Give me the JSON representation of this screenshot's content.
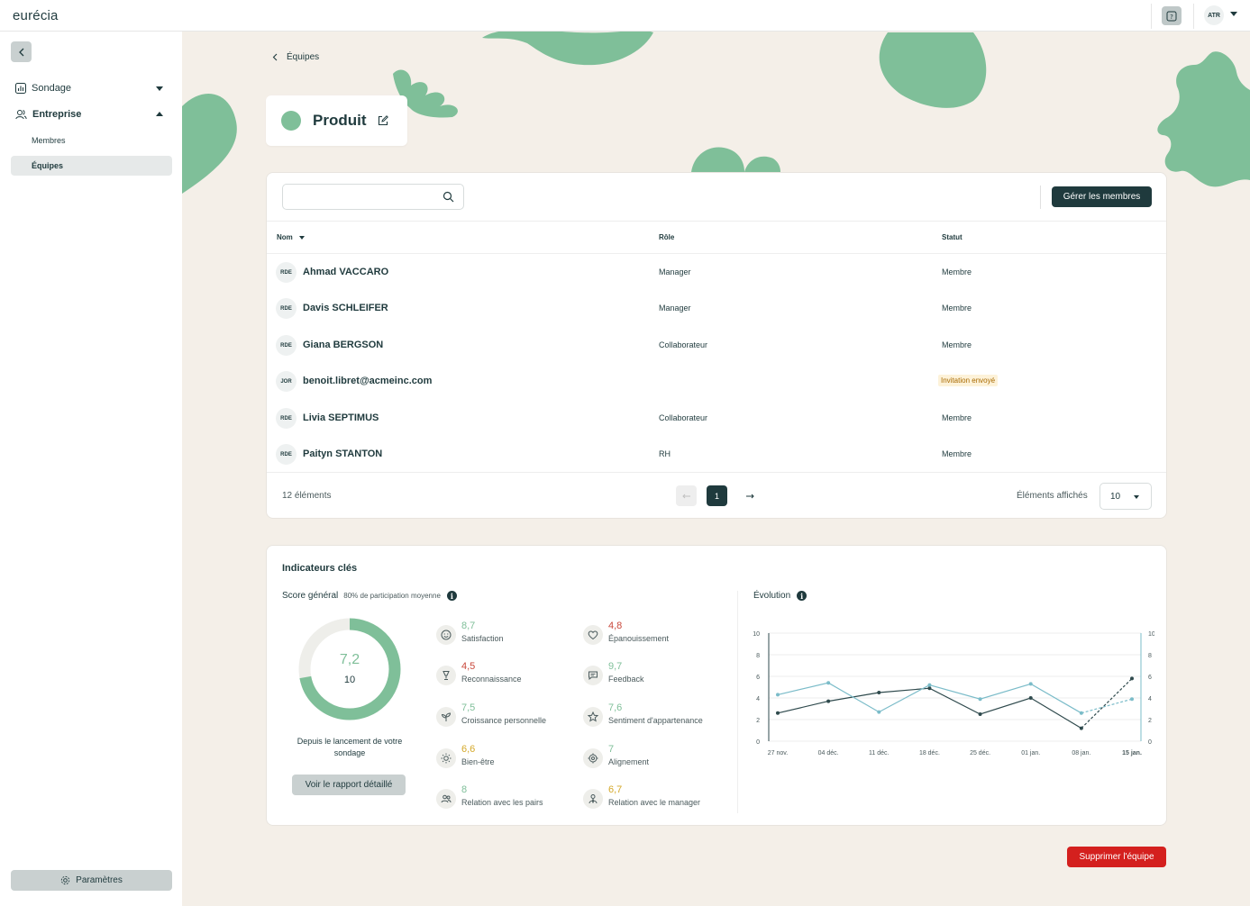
{
  "app": {
    "logo": "eurécia",
    "user_initials": "ATR"
  },
  "sidebar": {
    "items": [
      {
        "label": "Sondage"
      },
      {
        "label": "Entreprise"
      }
    ],
    "sub_items": [
      {
        "label": "Membres"
      },
      {
        "label": "Équipes"
      }
    ],
    "settings_label": "Paramètres"
  },
  "breadcrumb": {
    "label": "Équipes"
  },
  "team": {
    "name": "Produit",
    "color": "#7fbf99"
  },
  "members": {
    "search_placeholder": "",
    "manage_label": "Gérer les membres",
    "columns": {
      "name": "Nom",
      "role": "Rôle",
      "status": "Statut"
    },
    "rows": [
      {
        "initials": "RDE",
        "name": "Ahmad  VACCARO",
        "role": "Manager",
        "status": "Membre"
      },
      {
        "initials": "RDE",
        "name": "Davis  SCHLEIFER",
        "role": "Manager",
        "status": "Membre"
      },
      {
        "initials": "RDE",
        "name": "Giana  BERGSON",
        "role": "Collaborateur",
        "status": "Membre"
      },
      {
        "initials": "JOR",
        "name": "benoit.libret@acmeinc.com",
        "role": "",
        "status": "Invitation envoyé"
      },
      {
        "initials": "RDE",
        "name": "Livia  SEPTIMUS",
        "role": "Collaborateur",
        "status": "Membre"
      },
      {
        "initials": "RDE",
        "name": "Paityn  STANTON",
        "role": "RH",
        "status": "Membre"
      }
    ],
    "count_label": "12 éléments",
    "current_page": "1",
    "per_page_label": "Éléments affichés",
    "per_page_value": "10"
  },
  "kpi": {
    "title": "Indicateurs clés",
    "score_label": "Score général",
    "participation": "80% de participation moyenne",
    "score_value": "7,2",
    "score_max": "10",
    "score_fraction": 0.72,
    "since_label": "Depuis le lancement de votre sondage",
    "report_label": "Voir le rapport détaillé",
    "indicators": [
      {
        "value": "8,7",
        "label": "Satisfaction",
        "icon": "smile-icon",
        "tone": "green"
      },
      {
        "value": "4,8",
        "label": "Épanouissement",
        "icon": "heart-icon",
        "tone": "red"
      },
      {
        "value": "4,5",
        "label": "Reconnaissance",
        "icon": "trophy-icon",
        "tone": "red"
      },
      {
        "value": "9,7",
        "label": "Feedback",
        "icon": "chat-icon",
        "tone": "green"
      },
      {
        "value": "7,5",
        "label": "Croissance personnelle",
        "icon": "sprout-icon",
        "tone": "green"
      },
      {
        "value": "7,6",
        "label": "Sentiment d'appartenance",
        "icon": "star-icon",
        "tone": "green"
      },
      {
        "value": "6,6",
        "label": "Bien-être",
        "icon": "sun-icon",
        "tone": "yellow"
      },
      {
        "value": "7",
        "label": "Alignement",
        "icon": "target-icon",
        "tone": "green"
      },
      {
        "value": "8",
        "label": "Relation avec les pairs",
        "icon": "people-icon",
        "tone": "green"
      },
      {
        "value": "6,7",
        "label": "Relation avec le manager",
        "icon": "manager-icon",
        "tone": "yellow"
      }
    ],
    "evolution_label": "Évolution"
  },
  "chart_data": {
    "type": "line",
    "x": [
      "27 nov.",
      "04 déc.",
      "11 déc.",
      "18 déc.",
      "25 déc.",
      "01 jan.",
      "08 jan.",
      "15 jan."
    ],
    "y_ticks": [
      "0",
      "2",
      "4",
      "6",
      "8",
      "10"
    ],
    "ylim": [
      0,
      10
    ],
    "series": [
      {
        "color": "#2f4a4d",
        "values": [
          2.6,
          3.7,
          4.5,
          4.9,
          2.5,
          4.0,
          1.2,
          5.8
        ]
      },
      {
        "color": "#7bbcc9",
        "values": [
          4.3,
          5.4,
          2.7,
          5.2,
          3.9,
          5.3,
          2.6,
          3.9
        ]
      }
    ],
    "projected_last_segment": true,
    "grid": true
  },
  "footer": {
    "delete_label": "Supprimer l'équipe"
  },
  "colors": {
    "accent": "#1f3a3d",
    "brand_green": "#7fbf99",
    "danger": "#d4201e",
    "background": "#f4efe8"
  }
}
